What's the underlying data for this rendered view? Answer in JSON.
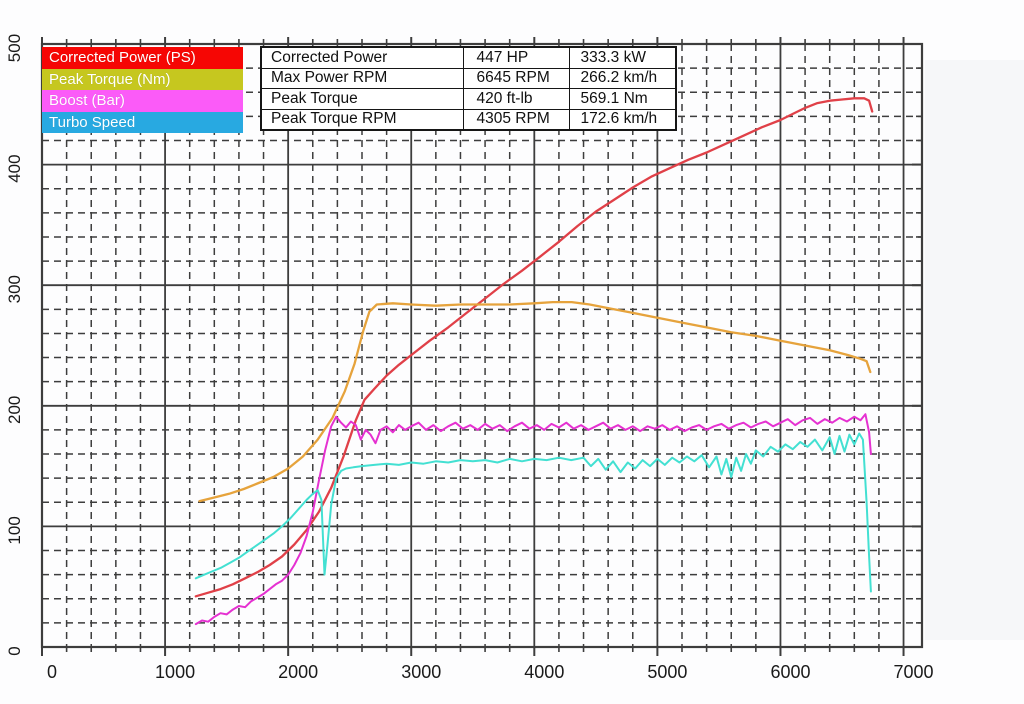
{
  "legend": {
    "items": [
      {
        "label": "Corrected Power (PS)",
        "color": "#f60604"
      },
      {
        "label": "Peak Torque (Nm)",
        "color": "#c6c71f"
      },
      {
        "label": "Boost (Bar)",
        "color": "#fb5bf8"
      },
      {
        "label": "Turbo Speed",
        "color": "#28a9e1"
      }
    ]
  },
  "table": {
    "rows": [
      {
        "label": "Corrected Power",
        "value1": "447 HP",
        "value2": "333.3 kW"
      },
      {
        "label": "Max Power RPM",
        "value1": "6645 RPM",
        "value2": "266.2 km/h"
      },
      {
        "label": "Peak Torque",
        "value1": "420 ft-lb",
        "value2": "569.1 Nm"
      },
      {
        "label": "Peak Torque RPM",
        "value1": "4305 RPM",
        "value2": "172.6 km/h"
      }
    ]
  },
  "chart_data": {
    "type": "line",
    "title": "",
    "xlabel": "",
    "ylabel": "",
    "xlim": [
      0,
      7150
    ],
    "ylim": [
      0,
      500
    ],
    "x_ticks": [
      0,
      1000,
      2000,
      3000,
      4000,
      5000,
      6000,
      7000
    ],
    "y_ticks": [
      0,
      100,
      200,
      300,
      400,
      500
    ],
    "grid": {
      "x_major": 1000,
      "x_minor": 200,
      "y_major": 100,
      "y_minor": 20,
      "style": "dashed-minor solid-major"
    },
    "legend_position": "top-left",
    "axis_color": "#3d3d3d",
    "series": [
      {
        "name": "corrected-power-ps",
        "color": "#e04048",
        "width": 2.3,
        "points": [
          [
            1250,
            42
          ],
          [
            1350,
            45
          ],
          [
            1450,
            48
          ],
          [
            1550,
            52
          ],
          [
            1650,
            57
          ],
          [
            1750,
            62
          ],
          [
            1850,
            68
          ],
          [
            1950,
            75
          ],
          [
            2050,
            85
          ],
          [
            2150,
            97
          ],
          [
            2250,
            112
          ],
          [
            2350,
            132
          ],
          [
            2450,
            158
          ],
          [
            2550,
            188
          ],
          [
            2620,
            205
          ],
          [
            2700,
            214
          ],
          [
            2800,
            225
          ],
          [
            2900,
            234
          ],
          [
            3000,
            242
          ],
          [
            3150,
            254
          ],
          [
            3300,
            265
          ],
          [
            3450,
            277
          ],
          [
            3600,
            289
          ],
          [
            3750,
            301
          ],
          [
            3900,
            312
          ],
          [
            4050,
            324
          ],
          [
            4200,
            336
          ],
          [
            4350,
            349
          ],
          [
            4500,
            361
          ],
          [
            4650,
            371
          ],
          [
            4800,
            381
          ],
          [
            4950,
            390
          ],
          [
            5100,
            397
          ],
          [
            5250,
            404
          ],
          [
            5400,
            410
          ],
          [
            5550,
            417
          ],
          [
            5700,
            424
          ],
          [
            5850,
            431
          ],
          [
            6000,
            437
          ],
          [
            6100,
            442
          ],
          [
            6200,
            447
          ],
          [
            6300,
            451
          ],
          [
            6400,
            453
          ],
          [
            6500,
            454
          ],
          [
            6600,
            455
          ],
          [
            6680,
            455
          ],
          [
            6720,
            453
          ],
          [
            6745,
            444
          ]
        ]
      },
      {
        "name": "peak-torque-nm",
        "color": "#e6a33c",
        "width": 2.3,
        "points": [
          [
            1280,
            121
          ],
          [
            1400,
            124
          ],
          [
            1520,
            127
          ],
          [
            1640,
            131
          ],
          [
            1760,
            136
          ],
          [
            1880,
            141
          ],
          [
            2000,
            148
          ],
          [
            2120,
            158
          ],
          [
            2240,
            172
          ],
          [
            2360,
            190
          ],
          [
            2460,
            212
          ],
          [
            2540,
            235
          ],
          [
            2610,
            262
          ],
          [
            2660,
            278
          ],
          [
            2720,
            284
          ],
          [
            2850,
            285
          ],
          [
            3000,
            284
          ],
          [
            3200,
            283
          ],
          [
            3400,
            284
          ],
          [
            3600,
            284
          ],
          [
            3800,
            284
          ],
          [
            4000,
            285
          ],
          [
            4150,
            286
          ],
          [
            4305,
            286
          ],
          [
            4450,
            284
          ],
          [
            4600,
            281
          ],
          [
            4800,
            277
          ],
          [
            5000,
            273
          ],
          [
            5200,
            269
          ],
          [
            5400,
            265
          ],
          [
            5600,
            261
          ],
          [
            5800,
            258
          ],
          [
            6000,
            254
          ],
          [
            6200,
            250
          ],
          [
            6400,
            246
          ],
          [
            6550,
            242
          ],
          [
            6650,
            239
          ],
          [
            6700,
            237
          ],
          [
            6730,
            228
          ]
        ]
      },
      {
        "name": "boost-bar",
        "color": "#e531d1",
        "width": 2.0,
        "points": [
          [
            1250,
            19
          ],
          [
            1300,
            22
          ],
          [
            1350,
            21
          ],
          [
            1400,
            25
          ],
          [
            1450,
            28
          ],
          [
            1500,
            27
          ],
          [
            1550,
            31
          ],
          [
            1600,
            34
          ],
          [
            1650,
            33
          ],
          [
            1700,
            38
          ],
          [
            1750,
            41
          ],
          [
            1800,
            44
          ],
          [
            1850,
            48
          ],
          [
            1900,
            52
          ],
          [
            1950,
            55
          ],
          [
            2000,
            60
          ],
          [
            2050,
            68
          ],
          [
            2100,
            78
          ],
          [
            2150,
            92
          ],
          [
            2200,
            112
          ],
          [
            2250,
            138
          ],
          [
            2300,
            163
          ],
          [
            2350,
            183
          ],
          [
            2390,
            191
          ],
          [
            2430,
            186
          ],
          [
            2470,
            182
          ],
          [
            2510,
            187
          ],
          [
            2550,
            184
          ],
          [
            2590,
            172
          ],
          [
            2630,
            180
          ],
          [
            2670,
            176
          ],
          [
            2710,
            169
          ],
          [
            2750,
            180
          ],
          [
            2800,
            183
          ],
          [
            2850,
            178
          ],
          [
            2900,
            184
          ],
          [
            2950,
            180
          ],
          [
            3000,
            183
          ],
          [
            3060,
            186
          ],
          [
            3120,
            180
          ],
          [
            3180,
            184
          ],
          [
            3240,
            179
          ],
          [
            3300,
            183
          ],
          [
            3360,
            186
          ],
          [
            3420,
            181
          ],
          [
            3480,
            184
          ],
          [
            3540,
            180
          ],
          [
            3600,
            185
          ],
          [
            3660,
            181
          ],
          [
            3720,
            184
          ],
          [
            3780,
            179
          ],
          [
            3840,
            183
          ],
          [
            3900,
            186
          ],
          [
            3960,
            181
          ],
          [
            4020,
            184
          ],
          [
            4080,
            180
          ],
          [
            4140,
            185
          ],
          [
            4200,
            182
          ],
          [
            4260,
            186
          ],
          [
            4320,
            181
          ],
          [
            4380,
            184
          ],
          [
            4440,
            180
          ],
          [
            4500,
            183
          ],
          [
            4560,
            186
          ],
          [
            4620,
            181
          ],
          [
            4680,
            184
          ],
          [
            4740,
            180
          ],
          [
            4800,
            183
          ],
          [
            4860,
            179
          ],
          [
            4920,
            183
          ],
          [
            4980,
            181
          ],
          [
            5040,
            184
          ],
          [
            5100,
            180
          ],
          [
            5160,
            183
          ],
          [
            5220,
            179
          ],
          [
            5280,
            182
          ],
          [
            5340,
            184
          ],
          [
            5400,
            180
          ],
          [
            5460,
            183
          ],
          [
            5520,
            185
          ],
          [
            5580,
            181
          ],
          [
            5640,
            184
          ],
          [
            5700,
            186
          ],
          [
            5760,
            182
          ],
          [
            5820,
            185
          ],
          [
            5880,
            187
          ],
          [
            5940,
            183
          ],
          [
            6000,
            186
          ],
          [
            6060,
            189
          ],
          [
            6120,
            184
          ],
          [
            6180,
            188
          ],
          [
            6240,
            190
          ],
          [
            6300,
            185
          ],
          [
            6360,
            189
          ],
          [
            6420,
            186
          ],
          [
            6480,
            190
          ],
          [
            6540,
            187
          ],
          [
            6600,
            191
          ],
          [
            6650,
            188
          ],
          [
            6690,
            193
          ],
          [
            6720,
            178
          ],
          [
            6735,
            160
          ]
        ]
      },
      {
        "name": "turbo-speed",
        "color": "#43e0d2",
        "width": 2.0,
        "points": [
          [
            1250,
            57
          ],
          [
            1320,
            60
          ],
          [
            1390,
            63
          ],
          [
            1460,
            66
          ],
          [
            1530,
            70
          ],
          [
            1600,
            74
          ],
          [
            1670,
            79
          ],
          [
            1740,
            84
          ],
          [
            1810,
            89
          ],
          [
            1880,
            94
          ],
          [
            1950,
            100
          ],
          [
            2020,
            107
          ],
          [
            2090,
            115
          ],
          [
            2150,
            122
          ],
          [
            2200,
            127
          ],
          [
            2240,
            130
          ],
          [
            2270,
            122
          ],
          [
            2295,
            60
          ],
          [
            2320,
            85
          ],
          [
            2350,
            118
          ],
          [
            2390,
            140
          ],
          [
            2430,
            146
          ],
          [
            2470,
            148
          ],
          [
            2530,
            149
          ],
          [
            2600,
            150
          ],
          [
            2700,
            151
          ],
          [
            2800,
            152
          ],
          [
            2900,
            151
          ],
          [
            3000,
            153
          ],
          [
            3100,
            152
          ],
          [
            3200,
            154
          ],
          [
            3300,
            153
          ],
          [
            3400,
            155
          ],
          [
            3500,
            154
          ],
          [
            3600,
            155
          ],
          [
            3700,
            153
          ],
          [
            3800,
            156
          ],
          [
            3900,
            154
          ],
          [
            4000,
            156
          ],
          [
            4100,
            155
          ],
          [
            4200,
            157
          ],
          [
            4300,
            155
          ],
          [
            4400,
            157
          ],
          [
            4460,
            150
          ],
          [
            4520,
            156
          ],
          [
            4580,
            147
          ],
          [
            4640,
            154
          ],
          [
            4700,
            145
          ],
          [
            4760,
            153
          ],
          [
            4820,
            148
          ],
          [
            4880,
            155
          ],
          [
            4940,
            150
          ],
          [
            5000,
            156
          ],
          [
            5060,
            151
          ],
          [
            5120,
            157
          ],
          [
            5180,
            153
          ],
          [
            5240,
            158
          ],
          [
            5300,
            154
          ],
          [
            5360,
            159
          ],
          [
            5420,
            149
          ],
          [
            5480,
            158
          ],
          [
            5520,
            143
          ],
          [
            5560,
            156
          ],
          [
            5600,
            141
          ],
          [
            5640,
            157
          ],
          [
            5680,
            146
          ],
          [
            5720,
            160
          ],
          [
            5760,
            152
          ],
          [
            5800,
            163
          ],
          [
            5860,
            158
          ],
          [
            5920,
            166
          ],
          [
            5980,
            162
          ],
          [
            6040,
            168
          ],
          [
            6100,
            164
          ],
          [
            6160,
            170
          ],
          [
            6220,
            166
          ],
          [
            6280,
            172
          ],
          [
            6340,
            163
          ],
          [
            6400,
            174
          ],
          [
            6440,
            160
          ],
          [
            6480,
            175
          ],
          [
            6520,
            162
          ],
          [
            6560,
            176
          ],
          [
            6600,
            168
          ],
          [
            6640,
            177
          ],
          [
            6670,
            172
          ],
          [
            6700,
            120
          ],
          [
            6720,
            75
          ],
          [
            6735,
            46
          ]
        ]
      }
    ]
  }
}
